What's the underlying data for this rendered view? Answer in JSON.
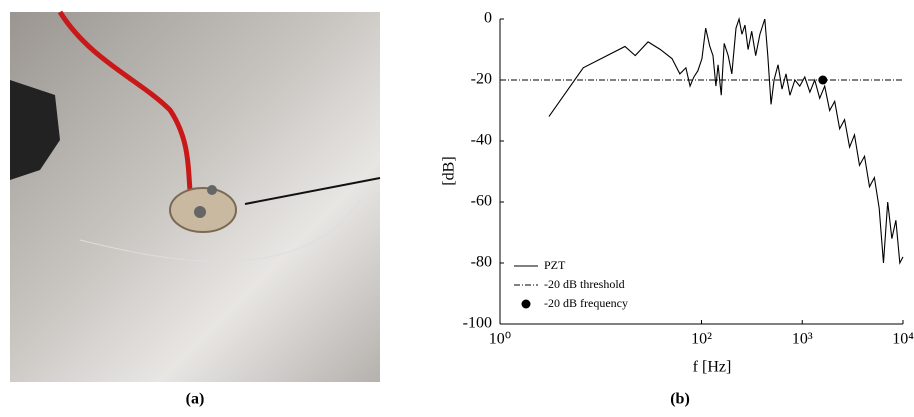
{
  "figure": {
    "labels": [
      "(a)",
      "(b)"
    ]
  },
  "chart_data": {
    "type": "line",
    "xlabel": "f [Hz]",
    "ylabel": "[dB]",
    "log_x": true,
    "xlim": [
      1,
      10000
    ],
    "ylim": [
      -100,
      0
    ],
    "xticks": [
      {
        "value": 1,
        "label": "10⁰"
      },
      {
        "value": 100,
        "label": "10²"
      },
      {
        "value": 1000,
        "label": "10³"
      },
      {
        "value": 10000,
        "label": "10⁴"
      }
    ],
    "yticks": [
      -100,
      -80,
      -60,
      -40,
      -20,
      0
    ],
    "legend": "lower left",
    "series": [
      {
        "name": "PZT",
        "color": "#000000",
        "style": "solid",
        "x": [
          3.06,
          6.7,
          17.4,
          22,
          29.5,
          39,
          51,
          61,
          70,
          77,
          84,
          92,
          101,
          110,
          121,
          130,
          139,
          146,
          157,
          168,
          184,
          200,
          220,
          236,
          252,
          270,
          290,
          315,
          345,
          380,
          425,
          455,
          490,
          525,
          575,
          630,
          690,
          755,
          845,
          945,
          1060,
          1190,
          1330,
          1490,
          1670,
          1870,
          2100,
          2350,
          2630,
          2950,
          3300,
          3700,
          4150,
          4650,
          5200,
          5800,
          6400,
          7050,
          7750,
          8500,
          9300,
          10000
        ],
        "values": [
          -32,
          -16,
          -9,
          -12,
          -7.5,
          -10,
          -13,
          -18,
          -16,
          -22,
          -19,
          -17,
          -13,
          -3,
          -9,
          -12,
          -22,
          -15,
          -25,
          -8,
          -12,
          -18,
          -3,
          0,
          -5,
          -2,
          -10,
          -4,
          -12,
          -5,
          0,
          -12,
          -28,
          -20,
          -15,
          -23,
          -18,
          -25,
          -20,
          -22,
          -19,
          -24,
          -20,
          -26,
          -22,
          -30,
          -27,
          -36,
          -33,
          -42,
          -38,
          -48,
          -45,
          -55,
          -52,
          -62,
          -80,
          -60,
          -72,
          -66,
          -80,
          -78
        ]
      },
      {
        "name": "-20 dB threshold",
        "color": "#000000",
        "style": "dashdot",
        "x": [
          1,
          10000
        ],
        "values": [
          -20,
          -20
        ]
      },
      {
        "name": "-20 dB frequency",
        "color": "#000000",
        "style": "marker",
        "x": [
          1600
        ],
        "values": [
          -20
        ]
      }
    ]
  }
}
